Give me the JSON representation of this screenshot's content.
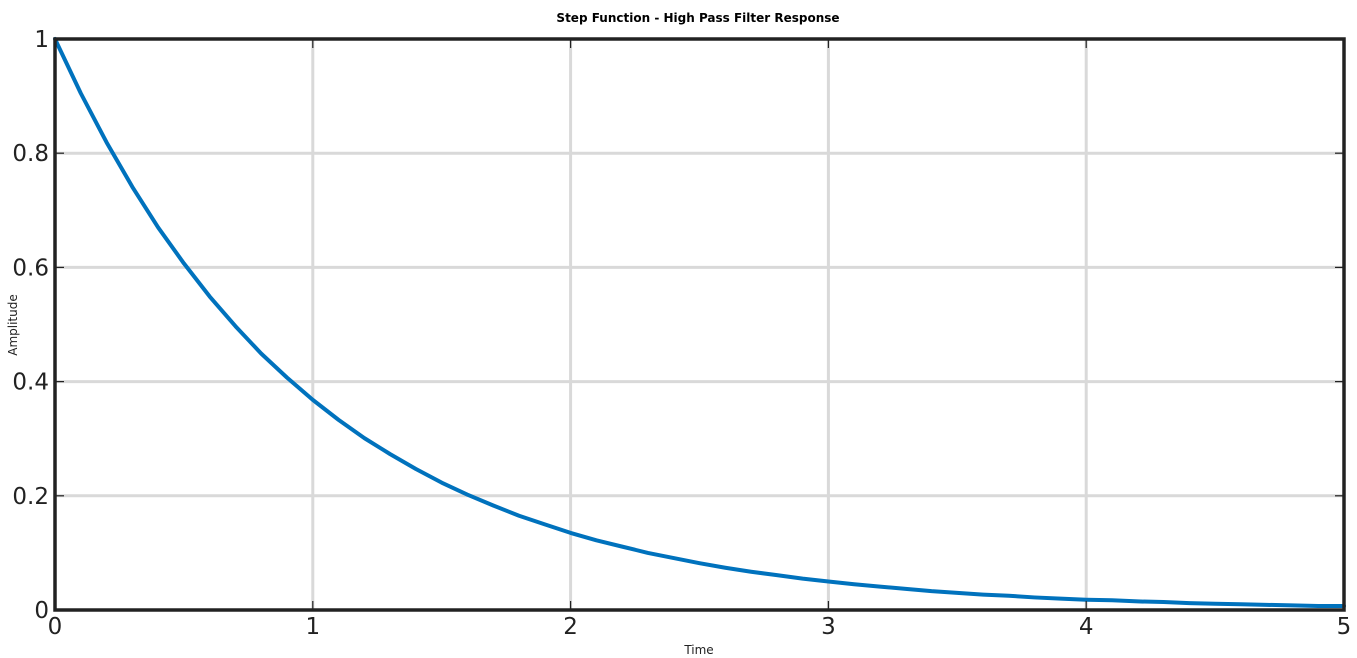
{
  "chart_data": {
    "type": "line",
    "title": "Step Function - High Pass Filter Response",
    "xlabel": "Time",
    "ylabel": "Amplitude",
    "xlim": [
      0,
      5
    ],
    "ylim": [
      0,
      1
    ],
    "x_ticks": [
      "0",
      "1",
      "2",
      "3",
      "4",
      "5"
    ],
    "y_ticks": [
      "0",
      "0.2",
      "0.4",
      "0.6",
      "0.8",
      "1"
    ],
    "grid": true,
    "legend": "none",
    "series": [
      {
        "color": "#0072bd",
        "x": [
          0,
          0.1,
          0.2,
          0.3,
          0.4,
          0.5,
          0.6,
          0.7,
          0.8,
          0.9,
          1.0,
          1.1,
          1.2,
          1.3,
          1.4,
          1.5,
          1.6,
          1.7,
          1.8,
          1.9,
          2.0,
          2.1,
          2.2,
          2.3,
          2.4,
          2.5,
          2.6,
          2.7,
          2.8,
          2.9,
          3.0,
          3.1,
          3.2,
          3.3,
          3.4,
          3.5,
          3.6,
          3.7,
          3.8,
          3.9,
          4.0,
          4.1,
          4.2,
          4.3,
          4.4,
          4.5,
          4.6,
          4.7,
          4.8,
          4.9,
          5.0
        ],
        "y": [
          1.0,
          0.905,
          0.819,
          0.741,
          0.67,
          0.607,
          0.549,
          0.497,
          0.449,
          0.407,
          0.368,
          0.333,
          0.301,
          0.273,
          0.247,
          0.223,
          0.202,
          0.183,
          0.165,
          0.15,
          0.135,
          0.122,
          0.111,
          0.1,
          0.091,
          0.082,
          0.074,
          0.067,
          0.061,
          0.055,
          0.05,
          0.045,
          0.041,
          0.037,
          0.033,
          0.03,
          0.027,
          0.025,
          0.022,
          0.02,
          0.018,
          0.017,
          0.015,
          0.014,
          0.012,
          0.011,
          0.01,
          0.009,
          0.008,
          0.007,
          0.007
        ]
      }
    ]
  }
}
